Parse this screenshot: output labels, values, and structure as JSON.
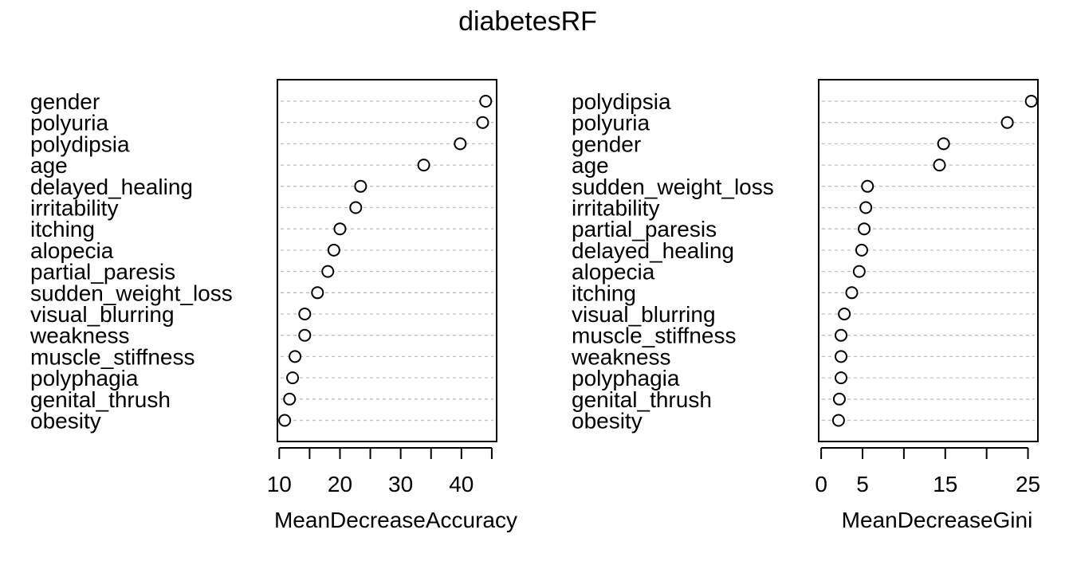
{
  "chart_data": {
    "type": "scatter",
    "title": "diabetesRF",
    "panels": [
      {
        "xlabel": "MeanDecreaseAccuracy",
        "xlim": [
          9.7,
          45.8
        ],
        "xticks": [
          10,
          15,
          20,
          25,
          30,
          35,
          40,
          45
        ],
        "xtick_labels": [
          "10",
          "20",
          "30",
          "40"
        ],
        "xtick_label_values": [
          10,
          20,
          30,
          40
        ],
        "categories": [
          "gender",
          "polyuria",
          "polydipsia",
          "age",
          "delayed_healing",
          "irritability",
          "itching",
          "alopecia",
          "partial_paresis",
          "sudden_weight_loss",
          "visual_blurring",
          "weakness",
          "muscle_stiffness",
          "polyphagia",
          "genital_thrush",
          "obesity"
        ],
        "values": [
          44.0,
          43.5,
          39.8,
          33.8,
          23.4,
          22.6,
          20.0,
          19.0,
          18.0,
          16.3,
          14.2,
          14.2,
          12.6,
          12.2,
          11.7,
          10.9
        ]
      },
      {
        "xlabel": "MeanDecreaseGini",
        "xlim": [
          -0.3,
          26.2
        ],
        "xticks": [
          0,
          5,
          10,
          15,
          20,
          25
        ],
        "xtick_labels": [
          "0",
          "5",
          "15",
          "25"
        ],
        "xtick_label_values": [
          0,
          5,
          15,
          25
        ],
        "categories": [
          "polydipsia",
          "polyuria",
          "gender",
          "age",
          "sudden_weight_loss",
          "irritability",
          "partial_paresis",
          "delayed_healing",
          "alopecia",
          "itching",
          "visual_blurring",
          "muscle_stiffness",
          "weakness",
          "polyphagia",
          "genital_thrush",
          "obesity"
        ],
        "values": [
          25.4,
          22.5,
          14.8,
          14.3,
          5.6,
          5.4,
          5.2,
          4.9,
          4.6,
          3.7,
          2.8,
          2.4,
          2.4,
          2.4,
          2.2,
          2.1
        ]
      }
    ],
    "grid": "dotted horizontal lines",
    "legend": "none"
  }
}
